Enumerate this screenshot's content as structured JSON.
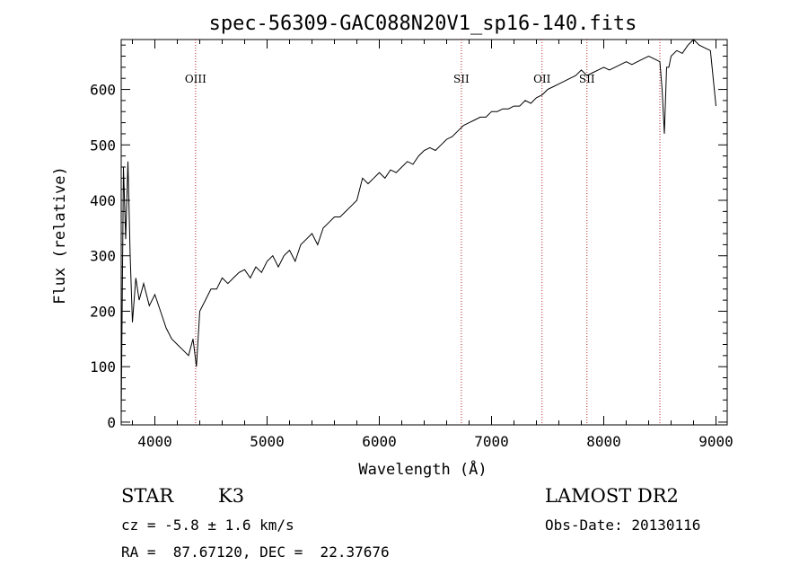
{
  "chart_data": {
    "type": "line",
    "title": "spec-56309-GAC088N20V1_sp16-140.fits",
    "xlabel": "Wavelength (Å)",
    "ylabel": "Flux (relative)",
    "xlim": [
      3700,
      9100
    ],
    "ylim": [
      -5,
      690
    ],
    "xticks": [
      4000,
      5000,
      6000,
      7000,
      8000,
      9000
    ],
    "yticks": [
      0,
      100,
      200,
      300,
      400,
      500,
      600
    ],
    "grid": false,
    "series": [
      {
        "x": [
          3700,
          3720,
          3740,
          3760,
          3780,
          3800,
          3830,
          3860,
          3900,
          3950,
          4000,
          4050,
          4100,
          4150,
          4200,
          4250,
          4300,
          4340,
          4370,
          4400,
          4450,
          4500,
          4550,
          4600,
          4650,
          4700,
          4750,
          4800,
          4850,
          4900,
          4950,
          5000,
          5050,
          5100,
          5150,
          5200,
          5250,
          5300,
          5350,
          5400,
          5450,
          5500,
          5550,
          5600,
          5650,
          5700,
          5750,
          5800,
          5850,
          5900,
          5950,
          6000,
          6050,
          6100,
          6150,
          6200,
          6250,
          6300,
          6350,
          6400,
          6450,
          6500,
          6550,
          6600,
          6650,
          6700,
          6750,
          6800,
          6850,
          6900,
          6950,
          7000,
          7050,
          7100,
          7150,
          7200,
          7250,
          7300,
          7350,
          7400,
          7450,
          7500,
          7550,
          7600,
          7650,
          7700,
          7750,
          7800,
          7850,
          7900,
          7950,
          8000,
          8050,
          8100,
          8150,
          8200,
          8250,
          8300,
          8350,
          8400,
          8450,
          8500,
          8520,
          8540,
          8560,
          8580,
          8600,
          8650,
          8700,
          8750,
          8800,
          8850,
          8900,
          8950,
          9000
        ],
        "y": [
          10,
          460,
          330,
          470,
          300,
          180,
          260,
          220,
          250,
          210,
          230,
          200,
          170,
          150,
          140,
          130,
          120,
          150,
          100,
          200,
          220,
          240,
          240,
          260,
          250,
          260,
          270,
          275,
          260,
          280,
          270,
          290,
          300,
          280,
          300,
          310,
          290,
          320,
          330,
          340,
          320,
          350,
          360,
          370,
          370,
          380,
          390,
          400,
          440,
          430,
          440,
          450,
          440,
          455,
          450,
          460,
          470,
          465,
          480,
          490,
          495,
          490,
          500,
          510,
          515,
          525,
          535,
          540,
          545,
          550,
          550,
          560,
          560,
          565,
          565,
          570,
          570,
          580,
          575,
          585,
          590,
          600,
          605,
          610,
          615,
          620,
          625,
          635,
          625,
          630,
          635,
          640,
          635,
          640,
          645,
          650,
          645,
          650,
          655,
          660,
          655,
          650,
          600,
          520,
          640,
          640,
          660,
          670,
          665,
          680,
          690,
          680,
          675,
          670,
          570
        ]
      }
    ],
    "lines": [
      {
        "x": 4363,
        "label": "OIII"
      },
      {
        "x": 6731,
        "label": "SII"
      },
      {
        "x": 7450,
        "label": "OII"
      },
      {
        "x": 7850,
        "label": "SII"
      },
      {
        "x": 8500,
        "label": ""
      }
    ]
  },
  "footer": {
    "class_label": "STAR",
    "subclass": "K3",
    "survey": "LAMOST DR2",
    "cz": "cz = -5.8 ± 1.6 km/s",
    "obs_date": "Obs-Date: 20130116",
    "coords": "RA =  87.67120, DEC =  22.37676"
  },
  "colors": {
    "line_marker": "#b22222",
    "spectrum": "#000000"
  }
}
